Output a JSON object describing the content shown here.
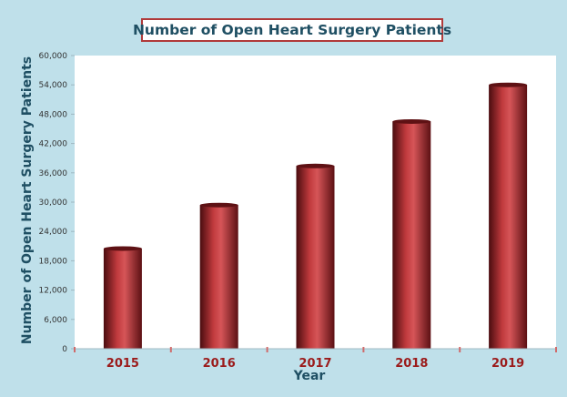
{
  "chart_data": {
    "type": "bar",
    "title": "Number of Open Heart Surgery Patients",
    "xlabel": "Year",
    "ylabel": "Number of Open Heart Surgery Patients",
    "categories": [
      "2015",
      "2016",
      "2017",
      "2018",
      "2019"
    ],
    "values": [
      20500,
      29400,
      37400,
      46500,
      54000
    ],
    "ylim": [
      0,
      60000
    ],
    "yticks": [
      "0",
      "6,000",
      "12,000",
      "18,000",
      "24,000",
      "30,000",
      "36,000",
      "42,000",
      "48,000",
      "54,000",
      "60,000"
    ],
    "grid": false,
    "legend": "none",
    "colors": {
      "bar": "#b83236",
      "bar_dark": "#5e1114",
      "bar_light": "#d85a5c",
      "title_border": "#b03a3a",
      "title_text": "#1f4f63",
      "axis_label": "#1f4f63",
      "category_label": "#9b1b1b",
      "background": "#bfe0ea",
      "plot_area": "#ffffff"
    }
  }
}
